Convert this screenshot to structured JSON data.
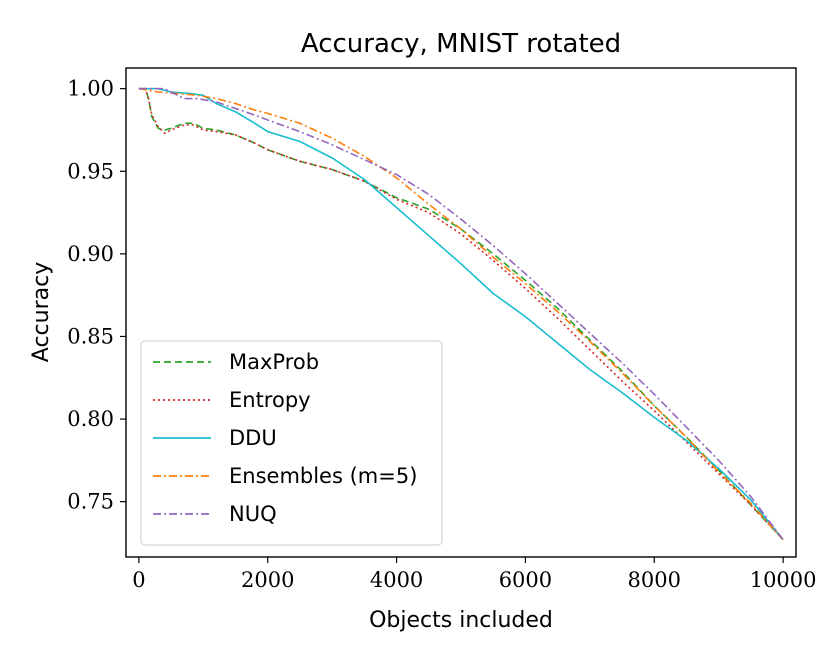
{
  "chart_data": {
    "type": "line",
    "title": "Accuracy, MNIST rotated",
    "xlabel": "Objects included",
    "ylabel": "Accuracy",
    "xlim": [
      -200,
      10200
    ],
    "ylim": [
      0.7165,
      1.0125
    ],
    "xticks": [
      0,
      2000,
      4000,
      6000,
      8000,
      10000
    ],
    "xtick_labels": [
      "0",
      "2000",
      "4000",
      "6000",
      "8000",
      "10000"
    ],
    "yticks": [
      0.75,
      0.8,
      0.85,
      0.9,
      0.95,
      1.0
    ],
    "ytick_labels": [
      "0.75",
      "0.80",
      "0.85",
      "0.90",
      "0.95",
      "1.00"
    ],
    "grid": false,
    "legend_position": "lower-left",
    "series": [
      {
        "name": "MaxProb",
        "color": "#2ca02c",
        "dash": "7,4",
        "points": [
          [
            0,
            1.0
          ],
          [
            100,
            1.0
          ],
          [
            150,
            0.994
          ],
          [
            200,
            0.983
          ],
          [
            300,
            0.976
          ],
          [
            400,
            0.975
          ],
          [
            500,
            0.976
          ],
          [
            700,
            0.979
          ],
          [
            850,
            0.979
          ],
          [
            1000,
            0.976
          ],
          [
            1200,
            0.975
          ],
          [
            1500,
            0.972
          ],
          [
            1800,
            0.967
          ],
          [
            2000,
            0.963
          ],
          [
            2500,
            0.956
          ],
          [
            3000,
            0.951
          ],
          [
            3500,
            0.944
          ],
          [
            4000,
            0.934
          ],
          [
            4500,
            0.927
          ],
          [
            5000,
            0.915
          ],
          [
            5500,
            0.9
          ],
          [
            6000,
            0.884
          ],
          [
            6500,
            0.867
          ],
          [
            7000,
            0.848
          ],
          [
            7500,
            0.829
          ],
          [
            8000,
            0.808
          ],
          [
            8500,
            0.789
          ],
          [
            9000,
            0.769
          ],
          [
            9500,
            0.748
          ],
          [
            10000,
            0.727
          ]
        ]
      },
      {
        "name": "Entropy",
        "color": "#d62728",
        "dash": "2,3",
        "points": [
          [
            0,
            1.0
          ],
          [
            100,
            1.0
          ],
          [
            150,
            0.994
          ],
          [
            200,
            0.984
          ],
          [
            300,
            0.977
          ],
          [
            400,
            0.973
          ],
          [
            500,
            0.975
          ],
          [
            700,
            0.978
          ],
          [
            850,
            0.978
          ],
          [
            1000,
            0.975
          ],
          [
            1200,
            0.974
          ],
          [
            1500,
            0.972
          ],
          [
            1800,
            0.967
          ],
          [
            2000,
            0.963
          ],
          [
            2500,
            0.956
          ],
          [
            3000,
            0.951
          ],
          [
            3500,
            0.944
          ],
          [
            4000,
            0.933
          ],
          [
            4500,
            0.925
          ],
          [
            5000,
            0.912
          ],
          [
            5500,
            0.896
          ],
          [
            6000,
            0.879
          ],
          [
            6500,
            0.861
          ],
          [
            7000,
            0.842
          ],
          [
            7500,
            0.823
          ],
          [
            8000,
            0.805
          ],
          [
            8500,
            0.786
          ],
          [
            9000,
            0.767
          ],
          [
            9500,
            0.748
          ],
          [
            10000,
            0.727
          ]
        ]
      },
      {
        "name": "DDU",
        "color": "#17becf",
        "dash": "",
        "points": [
          [
            0,
            1.0
          ],
          [
            300,
            1.0
          ],
          [
            500,
            0.998
          ],
          [
            800,
            0.997
          ],
          [
            1000,
            0.996
          ],
          [
            1200,
            0.991
          ],
          [
            1500,
            0.986
          ],
          [
            1800,
            0.979
          ],
          [
            2000,
            0.974
          ],
          [
            2500,
            0.968
          ],
          [
            3000,
            0.958
          ],
          [
            3500,
            0.945
          ],
          [
            4000,
            0.928
          ],
          [
            4500,
            0.911
          ],
          [
            5000,
            0.894
          ],
          [
            5500,
            0.876
          ],
          [
            6000,
            0.862
          ],
          [
            6500,
            0.846
          ],
          [
            7000,
            0.83
          ],
          [
            7500,
            0.816
          ],
          [
            8000,
            0.801
          ],
          [
            8500,
            0.787
          ],
          [
            9000,
            0.77
          ],
          [
            9500,
            0.751
          ],
          [
            10000,
            0.727
          ]
        ]
      },
      {
        "name": "Ensembles (m=5)",
        "color": "#ff7f0e",
        "dash": "8,3,2,3",
        "points": [
          [
            0,
            1.0
          ],
          [
            300,
            0.998
          ],
          [
            600,
            0.997
          ],
          [
            900,
            0.996
          ],
          [
            1200,
            0.994
          ],
          [
            1500,
            0.991
          ],
          [
            1800,
            0.987
          ],
          [
            2000,
            0.985
          ],
          [
            2500,
            0.979
          ],
          [
            3000,
            0.97
          ],
          [
            3500,
            0.959
          ],
          [
            4000,
            0.946
          ],
          [
            4500,
            0.93
          ],
          [
            5000,
            0.915
          ],
          [
            5500,
            0.898
          ],
          [
            6000,
            0.882
          ],
          [
            6500,
            0.865
          ],
          [
            7000,
            0.847
          ],
          [
            7500,
            0.828
          ],
          [
            8000,
            0.808
          ],
          [
            8500,
            0.789
          ],
          [
            9000,
            0.768
          ],
          [
            9500,
            0.749
          ],
          [
            10000,
            0.727
          ]
        ]
      },
      {
        "name": "NUQ",
        "color": "#9467bd",
        "dash": "8,3,2,3",
        "points": [
          [
            0,
            1.0
          ],
          [
            400,
            1.0
          ],
          [
            500,
            0.998
          ],
          [
            700,
            0.994
          ],
          [
            900,
            0.994
          ],
          [
            1200,
            0.992
          ],
          [
            1500,
            0.988
          ],
          [
            1800,
            0.984
          ],
          [
            2000,
            0.981
          ],
          [
            2500,
            0.974
          ],
          [
            3000,
            0.966
          ],
          [
            3500,
            0.957
          ],
          [
            4000,
            0.948
          ],
          [
            4500,
            0.936
          ],
          [
            5000,
            0.921
          ],
          [
            5500,
            0.905
          ],
          [
            6000,
            0.888
          ],
          [
            6500,
            0.87
          ],
          [
            7000,
            0.852
          ],
          [
            7500,
            0.834
          ],
          [
            8000,
            0.815
          ],
          [
            8500,
            0.795
          ],
          [
            9000,
            0.775
          ],
          [
            9500,
            0.753
          ],
          [
            10000,
            0.727
          ]
        ]
      }
    ]
  }
}
